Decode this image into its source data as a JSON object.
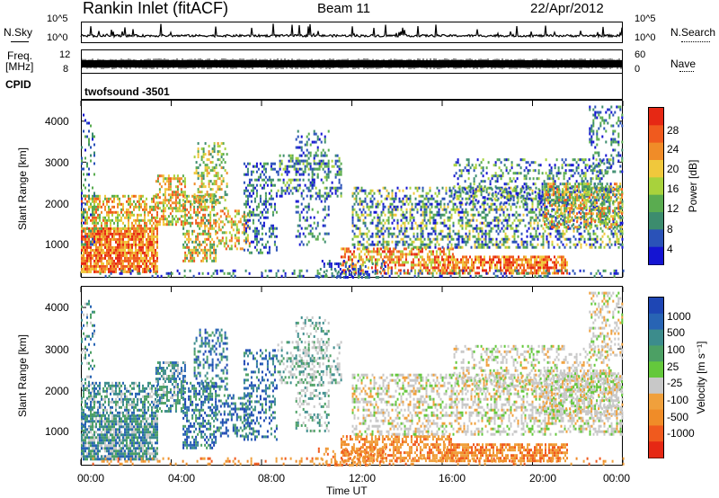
{
  "header": {
    "title": "Rankin Inlet (fitACF)",
    "beam": "Beam 11",
    "date": "22/Apr/2012"
  },
  "top_panels": {
    "nsky_label": "N.Sky",
    "nsky_ticks": [
      "10^5",
      "10^0"
    ],
    "nsearch_label": "N.Search",
    "nsearch_ticks": [
      "10^5",
      "10^0"
    ],
    "freq_label": "Freq.",
    "freq_unit": "[MHz]",
    "freq_ticks": [
      "12",
      "8"
    ],
    "nave_label": "Nave",
    "nave_ticks": [
      "60",
      "0"
    ],
    "cpid_label": "CPID",
    "cpid_value": "twofsound  -3501"
  },
  "chart_data": [
    {
      "type": "heatmap",
      "name": "power",
      "ylabel": "Slant Range [km]",
      "yticks": [
        1000,
        2000,
        3000,
        4000
      ],
      "ylim": [
        200,
        4500
      ],
      "xticks": [
        "00:00",
        "04:00",
        "08:00",
        "12:00",
        "16:00",
        "20:00",
        "00:00"
      ],
      "colorbar": {
        "label": "Power [dB]",
        "ticks": [
          "4",
          "8",
          "12",
          "16",
          "20",
          "24",
          "28"
        ],
        "colors": [
          "#1414d2",
          "#2a52b8",
          "#3c8c6e",
          "#5aac50",
          "#a8d23c",
          "#f0c83c",
          "#f08c28",
          "#f05a1e",
          "#e62814"
        ]
      }
    },
    {
      "type": "heatmap",
      "name": "velocity",
      "ylabel": "Slant Range [km]",
      "yticks": [
        1000,
        2000,
        3000,
        4000
      ],
      "ylim": [
        200,
        4500
      ],
      "xticks": [
        "00:00",
        "04:00",
        "08:00",
        "12:00",
        "16:00",
        "20:00",
        "00:00"
      ],
      "xlabel": "Time UT",
      "colorbar": {
        "label": "Velocity [m s⁻¹]",
        "ticks": [
          "1000",
          "500",
          "100",
          "25",
          "-25",
          "-100",
          "-500",
          "-1000"
        ],
        "colors": [
          "#1e46b4",
          "#2864b4",
          "#3c8c8c",
          "#4ca064",
          "#64c83c",
          "#c8c8c8",
          "#f0a03c",
          "#f08c28",
          "#f05a1e",
          "#e62814"
        ]
      }
    }
  ]
}
